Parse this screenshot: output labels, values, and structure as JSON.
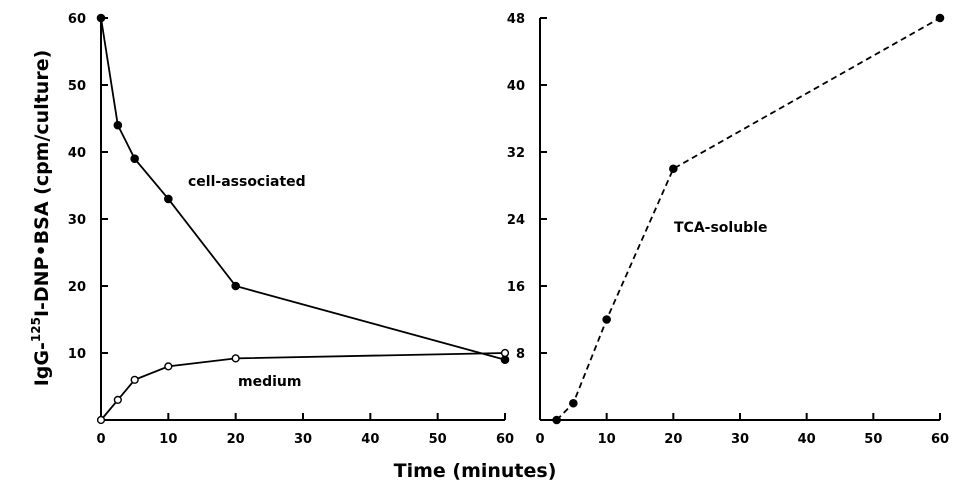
{
  "chart_data": [
    {
      "type": "line",
      "xlabel": "Time (minutes)",
      "ylabel": "IgG-125I-DNP•BSA (cpm/culture)",
      "xlim": [
        0,
        60
      ],
      "ylim": [
        0,
        60
      ],
      "xticks": [
        0,
        10,
        20,
        30,
        40,
        50,
        60
      ],
      "yticks": [
        10,
        20,
        30,
        40,
        50,
        60
      ],
      "grid": false,
      "series": [
        {
          "name": "cell-associated",
          "marker": "filled-circle",
          "line": "solid",
          "x": [
            0,
            2.5,
            5,
            10,
            20,
            60
          ],
          "y": [
            60,
            44,
            39,
            33,
            20,
            9
          ]
        },
        {
          "name": "medium",
          "marker": "open-circle",
          "line": "solid",
          "x": [
            0,
            2.5,
            5,
            10,
            20,
            60
          ],
          "y": [
            0,
            3,
            6,
            8,
            9.2,
            10
          ]
        }
      ]
    },
    {
      "type": "line",
      "xlabel": "Time (minutes)",
      "xlim": [
        0,
        60
      ],
      "ylim": [
        0,
        48
      ],
      "xticks": [
        0,
        10,
        20,
        30,
        40,
        50,
        60
      ],
      "yticks": [
        8,
        16,
        24,
        32,
        40,
        48
      ],
      "grid": false,
      "series": [
        {
          "name": "TCA-soluble",
          "marker": "filled-circle",
          "line": "dashed",
          "x": [
            2.5,
            5,
            10,
            20,
            60
          ],
          "y": [
            0,
            2,
            12,
            30,
            48
          ]
        }
      ]
    }
  ],
  "ylabel_parts": {
    "prefix": "IgG-",
    "superscript": "125",
    "suffix": "I-DNP•BSA (cpm/culture)"
  }
}
